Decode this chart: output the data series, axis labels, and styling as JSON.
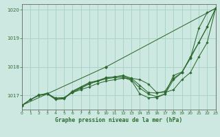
{
  "title": "Graphe pression niveau de la mer (hPa)",
  "bg_color": "#cce8e0",
  "grid_color": "#aad4c8",
  "line_color": "#2d6a30",
  "marker_color": "#2d6a30",
  "xlim": [
    0,
    23
  ],
  "ylim": [
    1016.5,
    1020.2
  ],
  "yticks": [
    1017,
    1018,
    1019,
    1020
  ],
  "xticks": [
    0,
    1,
    2,
    3,
    4,
    5,
    6,
    7,
    8,
    9,
    10,
    11,
    12,
    13,
    14,
    15,
    16,
    17,
    18,
    19,
    20,
    21,
    22,
    23
  ],
  "series": [
    [
      1016.65,
      1016.85,
      1017.0,
      1017.05,
      1016.9,
      1016.92,
      1017.1,
      1017.2,
      1017.3,
      1017.42,
      1017.5,
      1017.55,
      1017.6,
      1017.6,
      1017.55,
      1017.4,
      1017.1,
      1017.1,
      1017.2,
      1017.55,
      1017.8,
      1018.35,
      1018.85,
      1020.05
    ],
    [
      1016.65,
      1016.85,
      1017.0,
      1017.05,
      1016.9,
      1016.92,
      1017.1,
      1017.25,
      1017.4,
      1017.5,
      1017.62,
      1017.65,
      1017.7,
      1017.6,
      1017.35,
      1017.1,
      1017.08,
      1017.15,
      1017.6,
      1017.8,
      1018.3,
      1018.85,
      1019.4,
      1020.05
    ],
    [
      1016.65,
      1016.85,
      1017.0,
      1017.08,
      1016.88,
      1016.9,
      1017.15,
      1017.3,
      1017.45,
      1017.52,
      1017.62,
      1017.65,
      1017.68,
      1017.55,
      1017.25,
      1017.05,
      1016.95,
      1017.05,
      1017.55,
      1017.8,
      1018.35,
      1018.85,
      1019.4,
      1020.05
    ],
    [
      1016.65,
      1016.85,
      1017.02,
      1017.05,
      1016.85,
      1016.88,
      1017.12,
      1017.28,
      1017.42,
      1017.5,
      1017.58,
      1017.62,
      1017.63,
      1017.52,
      1017.05,
      1016.92,
      1016.92,
      1017.05,
      1017.7,
      1017.82,
      1018.3,
      1019.35,
      1019.9,
      1020.05
    ]
  ],
  "series_straight": {
    "x": [
      0,
      10,
      23
    ],
    "y": [
      1016.65,
      1018.0,
      1020.05
    ]
  }
}
